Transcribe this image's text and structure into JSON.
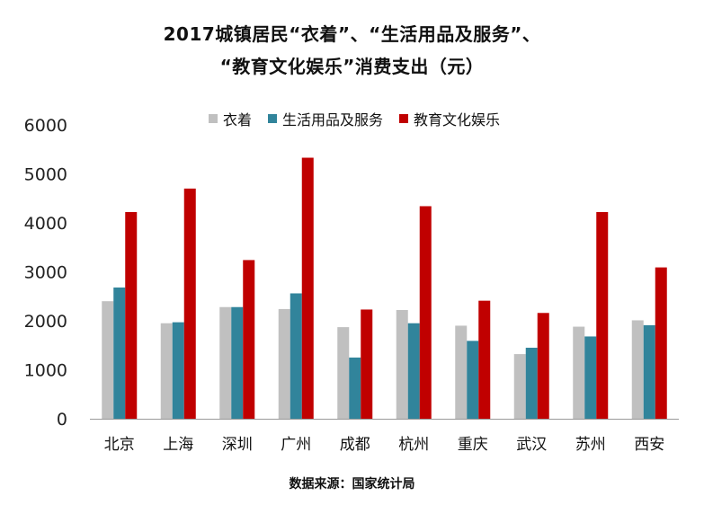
{
  "title_line1": "2017城镇居民“衣着”、“生活用品及服务”、",
  "title_line2": "“教育文化娱乐”消费支出（元）",
  "source": "数据来源：国家统计局",
  "colors": {
    "series1": "#c0c0c0",
    "series2": "#31849b",
    "series3": "#c00000",
    "axis": "#999999"
  },
  "chart_data": {
    "type": "bar",
    "categories": [
      "北京",
      "上海",
      "深圳",
      "广州",
      "成都",
      "杭州",
      "重庆",
      "武汉",
      "苏州",
      "西安"
    ],
    "series": [
      {
        "name": "衣着",
        "values": [
          2400,
          1950,
          2280,
          2240,
          1870,
          2220,
          1900,
          1320,
          1880,
          2010
        ]
      },
      {
        "name": "生活用品及服务",
        "values": [
          2680,
          1970,
          2280,
          2560,
          1250,
          1950,
          1590,
          1450,
          1680,
          1910
        ]
      },
      {
        "name": "教育文化娱乐",
        "values": [
          4220,
          4700,
          3240,
          5330,
          2230,
          4340,
          2410,
          2160,
          4220,
          3090
        ]
      }
    ],
    "y_ticks": [
      "0",
      "1000",
      "2000",
      "3000",
      "4000",
      "5000",
      "6000"
    ],
    "ylim": [
      0,
      6000
    ],
    "grid": false,
    "legend_position": "top"
  }
}
